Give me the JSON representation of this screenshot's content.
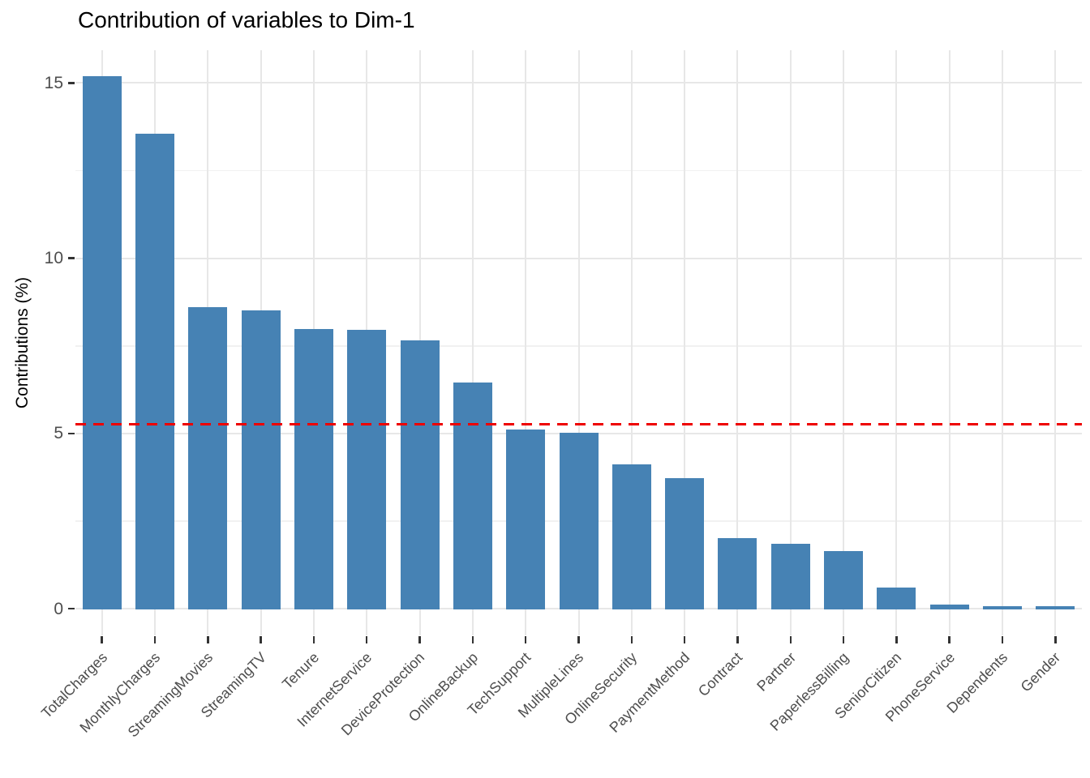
{
  "chart_data": {
    "type": "bar",
    "title": "Contribution of variables to Dim-1",
    "xlabel": "",
    "ylabel": "Contributions (%)",
    "categories": [
      "TotalCharges",
      "MonthlyCharges",
      "StreamingMovies",
      "StreamingTV",
      "Tenure",
      "InternetService",
      "DeviceProtection",
      "OnlineBackup",
      "TechSupport",
      "MultipleLines",
      "OnlineSecurity",
      "PaymentMethod",
      "Contract",
      "Partner",
      "PaperlessBilling",
      "SeniorCitizen",
      "PhoneService",
      "Dependents",
      "Gender"
    ],
    "values": [
      15.2,
      13.55,
      8.6,
      8.5,
      7.98,
      7.95,
      7.65,
      6.44,
      5.12,
      5.02,
      4.11,
      3.72,
      2.02,
      1.84,
      1.65,
      0.6,
      0.11,
      0.06,
      0.07
    ],
    "y_ticks": [
      0,
      5,
      10,
      15
    ],
    "ylim": [
      0,
      15.93
    ],
    "grid": true,
    "legend_position": "none",
    "bar_color": "#4682B4",
    "reference_line": {
      "value": 5.26,
      "color": "#ee0000",
      "style": "dashed"
    }
  }
}
